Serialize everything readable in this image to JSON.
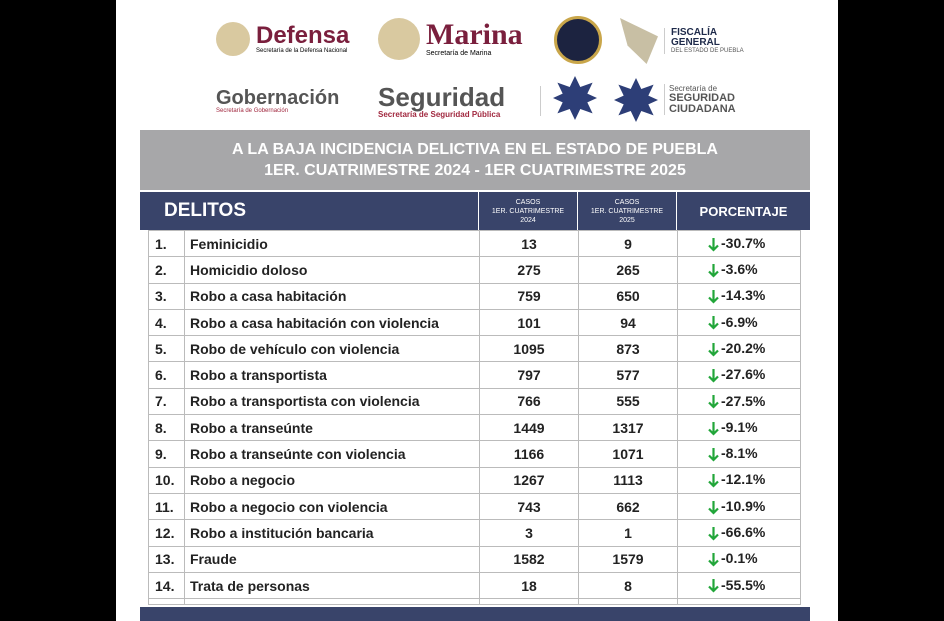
{
  "logos": {
    "defensa": {
      "name": "Defensa",
      "sub": "Secretaría de la Defensa Nacional"
    },
    "marina": {
      "name": "Marina",
      "sub": "Secretaría de Marina"
    },
    "fiscalia": {
      "name": "FISCALÍA GENERAL",
      "sub": "DEL ESTADO DE PUEBLA"
    },
    "gobernacion": {
      "name": "Gobernación",
      "sub": "Secretaría de Gobernación"
    },
    "seguridad": {
      "name": "Seguridad",
      "sub": "Secretaría de Seguridad Pública"
    },
    "ssc": {
      "pre": "Secretaría de",
      "name": "SEGURIDAD CIUDADANA"
    }
  },
  "title": {
    "line1": "A LA BAJA INCIDENCIA DELICTIVA EN EL ESTADO DE PUEBLA",
    "line2": "1ER. CUATRIMESTRE 2024 - 1ER CUATRIMESTRE 2025"
  },
  "header": {
    "delitos": "DELITOS",
    "casos": "CASOS",
    "period": "1ER. CUATRIMESTRE",
    "y2024": "2024",
    "y2025": "2025",
    "porcentaje": "PORCENTAJE"
  },
  "colors": {
    "navy": "#39446a",
    "gray": "#a7a7a9",
    "down_arrow": "#22a63a",
    "brand": "#7a1f3d"
  },
  "rows": [
    {
      "n": "1.",
      "d": "Feminicidio",
      "a": "13",
      "b": "9",
      "p": "-30.7%"
    },
    {
      "n": "2.",
      "d": "Homicidio doloso",
      "a": "275",
      "b": "265",
      "p": "-3.6%"
    },
    {
      "n": "3.",
      "d": "Robo a casa habitación",
      "a": "759",
      "b": "650",
      "p": "-14.3%"
    },
    {
      "n": "4.",
      "d": "Robo a casa habitación con violencia",
      "a": "101",
      "b": "94",
      "p": "-6.9%"
    },
    {
      "n": "5.",
      "d": "Robo de vehículo con violencia",
      "a": "1095",
      "b": "873",
      "p": "-20.2%"
    },
    {
      "n": "6.",
      "d": "Robo a transportista",
      "a": "797",
      "b": "577",
      "p": "-27.6%"
    },
    {
      "n": "7.",
      "d": "Robo a transportista con violencia",
      "a": "766",
      "b": "555",
      "p": "-27.5%"
    },
    {
      "n": "8.",
      "d": "Robo a transeúnte",
      "a": "1449",
      "b": "1317",
      "p": "-9.1%"
    },
    {
      "n": "9.",
      "d": "Robo a transeúnte con violencia",
      "a": "1166",
      "b": "1071",
      "p": "-8.1%"
    },
    {
      "n": "10.",
      "d": "Robo a negocio",
      "a": "1267",
      "b": "1113",
      "p": "-12.1%"
    },
    {
      "n": "11.",
      "d": "Robo a negocio con violencia",
      "a": "743",
      "b": "662",
      "p": "-10.9%"
    },
    {
      "n": "12.",
      "d": "Robo a institución bancaria",
      "a": "3",
      "b": "1",
      "p": "-66.6%"
    },
    {
      "n": "13.",
      "d": "Fraude",
      "a": "1582",
      "b": "1579",
      "p": "-0.1%"
    },
    {
      "n": "14.",
      "d": "Trata de personas",
      "a": "18",
      "b": "8",
      "p": "-55.5%"
    }
  ]
}
